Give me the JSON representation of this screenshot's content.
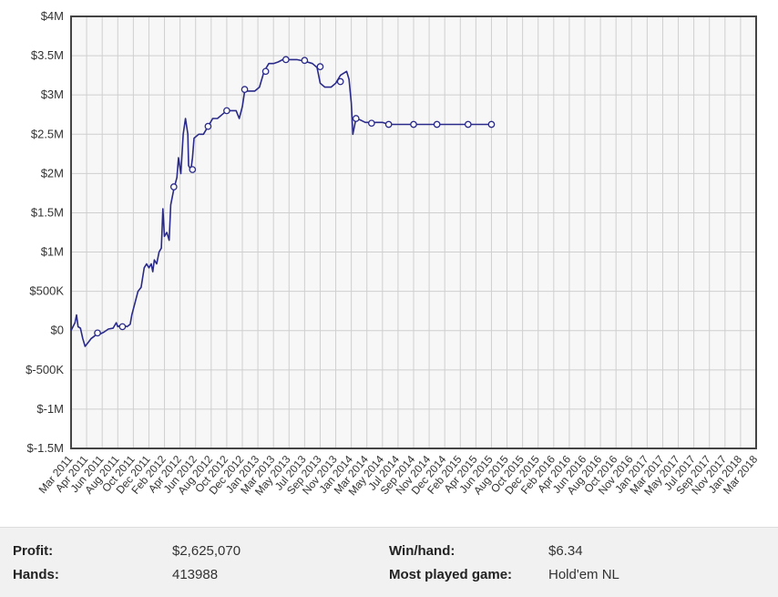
{
  "chart_data": {
    "type": "line",
    "y_tick_labels": [
      "$4M",
      "$3.5M",
      "$3M",
      "$2.5M",
      "$2M",
      "$1.5M",
      "$1M",
      "$500K",
      "$0",
      "$-500K",
      "$-1M",
      "$-1.5M"
    ],
    "ylim": [
      -1500000,
      4000000
    ],
    "x_tick_labels": [
      "Mar 2011",
      "Apr 2011",
      "Jun 2011",
      "Aug 2011",
      "Oct 2011",
      "Dec 2011",
      "Feb 2012",
      "Apr 2012",
      "Jun 2012",
      "Aug 2012",
      "Oct 2012",
      "Dec 2012",
      "Jan 2013",
      "Mar 2013",
      "May 2013",
      "Jul 2013",
      "Sep 2013",
      "Nov 2013",
      "Jan 2014",
      "Mar 2014",
      "May 2014",
      "Jul 2014",
      "Sep 2014",
      "Nov 2014",
      "Dec 2014",
      "Feb 2015",
      "Apr 2015",
      "Jun 2015",
      "Aug 2015",
      "Oct 2015",
      "Dec 2015",
      "Feb 2016",
      "Apr 2016",
      "Jun 2016",
      "Aug 2016",
      "Oct 2016",
      "Nov 2016",
      "Jan 2017",
      "Mar 2017",
      "May 2017",
      "Jul 2017",
      "Sep 2017",
      "Nov 2017",
      "Jan 2018",
      "Mar 2018"
    ],
    "grid": true,
    "line_color": "#2a2a8a",
    "series": [
      {
        "points": [
          [
            0,
            0
          ],
          [
            0.25,
            100000
          ],
          [
            0.35,
            200000
          ],
          [
            0.45,
            50000
          ],
          [
            0.6,
            30000
          ],
          [
            0.75,
            -100000
          ],
          [
            0.9,
            -200000
          ],
          [
            1.1,
            -150000
          ],
          [
            1.3,
            -100000
          ],
          [
            1.5,
            -70000
          ],
          [
            1.7,
            -30000
          ],
          [
            1.9,
            -40000
          ],
          [
            2.1,
            -20000
          ],
          [
            2.4,
            20000
          ],
          [
            2.7,
            30000
          ],
          [
            2.9,
            100000
          ],
          [
            3.0,
            50000
          ],
          [
            3.1,
            60000
          ],
          [
            3.3,
            70000
          ],
          [
            3.6,
            50000
          ],
          [
            3.8,
            80000
          ],
          [
            3.9,
            200000
          ],
          [
            4.1,
            350000
          ],
          [
            4.3,
            500000
          ],
          [
            4.5,
            550000
          ],
          [
            4.7,
            800000
          ],
          [
            4.85,
            850000
          ],
          [
            5.0,
            800000
          ],
          [
            5.15,
            850000
          ],
          [
            5.25,
            750000
          ],
          [
            5.35,
            900000
          ],
          [
            5.5,
            850000
          ],
          [
            5.65,
            1000000
          ],
          [
            5.8,
            1050000
          ],
          [
            5.9,
            1550000
          ],
          [
            6.0,
            1200000
          ],
          [
            6.15,
            1250000
          ],
          [
            6.3,
            1150000
          ],
          [
            6.4,
            1600000
          ],
          [
            6.5,
            1700000
          ],
          [
            6.6,
            1800000
          ],
          [
            6.8,
            1950000
          ],
          [
            6.9,
            2200000
          ],
          [
            7.05,
            2000000
          ],
          [
            7.2,
            2500000
          ],
          [
            7.35,
            2700000
          ],
          [
            7.5,
            2500000
          ],
          [
            7.55,
            2100000
          ],
          [
            7.7,
            2050000
          ],
          [
            7.8,
            2200000
          ],
          [
            7.9,
            2450000
          ],
          [
            8.2,
            2500000
          ],
          [
            8.5,
            2500000
          ],
          [
            8.8,
            2600000
          ],
          [
            9.1,
            2700000
          ],
          [
            9.4,
            2700000
          ],
          [
            9.7,
            2750000
          ],
          [
            10.0,
            2800000
          ],
          [
            10.3,
            2800000
          ],
          [
            10.6,
            2800000
          ],
          [
            10.8,
            2700000
          ],
          [
            11.0,
            2850000
          ],
          [
            11.15,
            3050000
          ],
          [
            11.4,
            3050000
          ],
          [
            11.6,
            3050000
          ],
          [
            11.8,
            3050000
          ],
          [
            12.1,
            3100000
          ],
          [
            12.4,
            3300000
          ],
          [
            12.7,
            3400000
          ],
          [
            13.0,
            3400000
          ],
          [
            13.3,
            3420000
          ],
          [
            13.6,
            3450000
          ],
          [
            14.0,
            3450000
          ],
          [
            14.5,
            3450000
          ],
          [
            15.0,
            3430000
          ],
          [
            15.5,
            3400000
          ],
          [
            15.8,
            3350000
          ],
          [
            16.0,
            3150000
          ],
          [
            16.3,
            3100000
          ],
          [
            16.7,
            3100000
          ],
          [
            17.0,
            3150000
          ],
          [
            17.3,
            3250000
          ],
          [
            17.7,
            3300000
          ],
          [
            17.85,
            3200000
          ],
          [
            18.0,
            2900000
          ],
          [
            18.1,
            2500000
          ],
          [
            18.3,
            2700000
          ],
          [
            18.6,
            2680000
          ],
          [
            18.9,
            2650000
          ],
          [
            19.2,
            2650000
          ],
          [
            19.6,
            2650000
          ],
          [
            20.0,
            2650000
          ],
          [
            20.4,
            2625000
          ],
          [
            21.0,
            2625000
          ],
          [
            21.5,
            2625000
          ],
          [
            22.0,
            2625000
          ],
          [
            23.0,
            2625000
          ],
          [
            24.0,
            2625000
          ],
          [
            25.0,
            2625000
          ],
          [
            26.0,
            2625000
          ],
          [
            27.0,
            2625070
          ]
        ]
      }
    ],
    "markers": [
      [
        1.7,
        -30000
      ],
      [
        3.3,
        50000
      ],
      [
        6.6,
        1830000
      ],
      [
        7.8,
        2050000
      ],
      [
        8.8,
        2600000
      ],
      [
        10.0,
        2800000
      ],
      [
        11.15,
        3070000
      ],
      [
        12.5,
        3300000
      ],
      [
        13.8,
        3450000
      ],
      [
        15.0,
        3440000
      ],
      [
        16.0,
        3360000
      ],
      [
        17.3,
        3170000
      ],
      [
        18.3,
        2700000
      ],
      [
        19.3,
        2640000
      ],
      [
        20.4,
        2625000
      ],
      [
        22.0,
        2625000
      ],
      [
        23.5,
        2625000
      ],
      [
        25.5,
        2625000
      ],
      [
        27.0,
        2625070
      ]
    ]
  },
  "stats": {
    "profit_label": "Profit:",
    "profit_value": "$2,625,070",
    "hands_label": "Hands:",
    "hands_value": "413988",
    "winhand_label": "Win/hand:",
    "winhand_value": "$6.34",
    "game_label": "Most played game:",
    "game_value": "Hold'em NL"
  }
}
